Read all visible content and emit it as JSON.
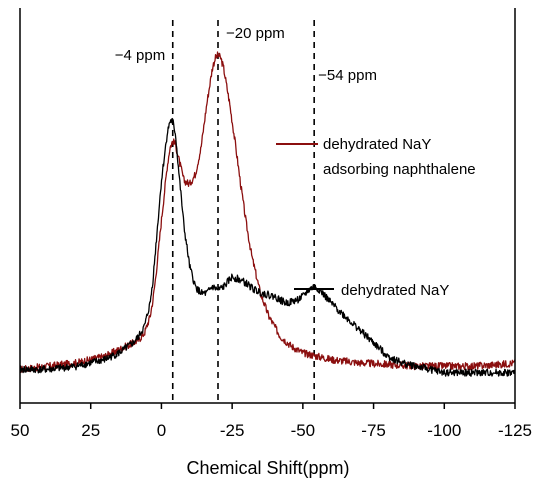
{
  "chart_data": {
    "type": "line",
    "xlabel": "Chemical Shift(ppm)",
    "ylabel": "",
    "x_reversed": true,
    "xlim": [
      50,
      -125
    ],
    "ylim": [
      0,
      1
    ],
    "y_ticks_visible": false,
    "grid": false,
    "x_ticks": [
      50,
      25,
      0,
      -25,
      -50,
      -75,
      -100,
      -125
    ],
    "x_tick_labels": [
      "50",
      "25",
      "0",
      "-25",
      "-50",
      "-75",
      "-100",
      "-125"
    ],
    "reference_lines": [
      {
        "x": -4,
        "label": "−4 ppm"
      },
      {
        "x": -20,
        "label": "−20 ppm"
      },
      {
        "x": -54,
        "label": "−54 ppm"
      }
    ],
    "legend_placement": "inline",
    "series": [
      {
        "name": "dehydrated NaY adsorbing naphthalene",
        "color": "#8b0f0f",
        "x": [
          50,
          40,
          30,
          20,
          15,
          10,
          8,
          6,
          4,
          3,
          2,
          0,
          -2,
          -3,
          -4,
          -5,
          -6,
          -8,
          -10,
          -12,
          -14,
          -16,
          -18,
          -19,
          -20,
          -21,
          -22,
          -24,
          -26,
          -28,
          -30,
          -32,
          -35,
          -38,
          -42,
          -46,
          -50,
          -55,
          -60,
          -70,
          -80,
          -90,
          -100,
          -110,
          -120,
          -125
        ],
        "y": [
          0.05,
          0.06,
          0.07,
          0.09,
          0.11,
          0.13,
          0.14,
          0.16,
          0.21,
          0.26,
          0.33,
          0.5,
          0.66,
          0.72,
          0.74,
          0.73,
          0.69,
          0.62,
          0.61,
          0.64,
          0.72,
          0.85,
          0.96,
          0.99,
          1.0,
          0.99,
          0.96,
          0.86,
          0.74,
          0.61,
          0.49,
          0.39,
          0.28,
          0.21,
          0.15,
          0.12,
          0.1,
          0.09,
          0.08,
          0.07,
          0.065,
          0.06,
          0.06,
          0.06,
          0.065,
          0.07
        ]
      },
      {
        "name": "dehydrated NaY",
        "color": "#000000",
        "x": [
          50,
          40,
          30,
          20,
          15,
          10,
          8,
          6,
          4,
          3,
          2,
          0,
          -2,
          -3,
          -4,
          -5,
          -6,
          -8,
          -10,
          -12,
          -14,
          -16,
          -18,
          -20,
          -22,
          -25,
          -28,
          -30,
          -33,
          -36,
          -40,
          -44,
          -48,
          -50,
          -52,
          -54,
          -56,
          -58,
          -60,
          -65,
          -70,
          -75,
          -80,
          -85,
          -90,
          -95,
          -100,
          -110,
          -120,
          -125
        ],
        "y": [
          0.05,
          0.05,
          0.06,
          0.08,
          0.1,
          0.13,
          0.15,
          0.18,
          0.25,
          0.32,
          0.42,
          0.62,
          0.76,
          0.8,
          0.8,
          0.76,
          0.66,
          0.48,
          0.36,
          0.3,
          0.28,
          0.28,
          0.3,
          0.29,
          0.3,
          0.33,
          0.32,
          0.31,
          0.29,
          0.28,
          0.27,
          0.25,
          0.26,
          0.27,
          0.29,
          0.3,
          0.29,
          0.27,
          0.25,
          0.21,
          0.17,
          0.13,
          0.09,
          0.07,
          0.06,
          0.05,
          0.04,
          0.04,
          0.04,
          0.04
        ]
      }
    ]
  }
}
